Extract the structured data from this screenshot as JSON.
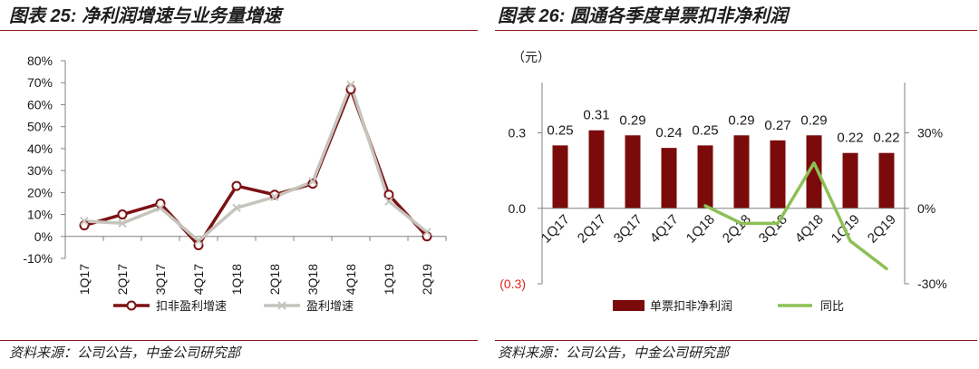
{
  "panels": {
    "left": {
      "source": "资料来源：公司公告，中金公司研究部"
    },
    "right": {
      "source": "资料来源：公司公告，中金公司研究部"
    }
  },
  "colors": {
    "rule": "#8b1a1a",
    "negative_tick": "#e02424"
  },
  "chart_data": [
    {
      "type": "line",
      "title": "图表 25: 净利润增速与业务量增速",
      "categories": [
        "1Q17",
        "2Q17",
        "3Q17",
        "4Q17",
        "1Q18",
        "2Q18",
        "3Q18",
        "4Q18",
        "1Q19",
        "2Q19"
      ],
      "ylim": [
        -10,
        80
      ],
      "yticks": [
        -10,
        0,
        10,
        20,
        30,
        40,
        50,
        60,
        70,
        80
      ],
      "ytick_labels": [
        "-10%",
        "0%",
        "10%",
        "20%",
        "30%",
        "40%",
        "50%",
        "60%",
        "70%",
        "80%"
      ],
      "grid": false,
      "legend": "bottom",
      "series": [
        {
          "name": "扣非盈利增速",
          "values": [
            5,
            10,
            15,
            -4,
            23,
            19,
            24,
            67,
            19,
            0
          ],
          "color": "#7b1113",
          "marker": "circle"
        },
        {
          "name": "盈利增速",
          "values": [
            7,
            6,
            13,
            -2,
            13,
            18,
            25,
            69,
            16,
            2
          ],
          "color": "#c6c4bd",
          "marker": "x"
        }
      ]
    },
    {
      "type": "bar",
      "title": "图表 26: 圆通各季度单票扣非净利润",
      "ylabel": "（元）",
      "categories": [
        "1Q17",
        "2Q17",
        "3Q17",
        "4Q17",
        "1Q18",
        "2Q18",
        "3Q18",
        "4Q18",
        "1Q19",
        "2Q19"
      ],
      "ylim": [
        -0.3,
        0.5
      ],
      "yticks": [
        -0.3,
        0,
        0.3
      ],
      "ytick_labels": [
        "(0.3)",
        "0.0",
        "0.3"
      ],
      "y2lim": [
        -30,
        50
      ],
      "y2ticks": [
        -30,
        0,
        30
      ],
      "y2tick_labels": [
        "-30%",
        "0%",
        "30%"
      ],
      "grid": false,
      "legend": "bottom",
      "series": [
        {
          "name": "单票扣非净利润",
          "type": "bar",
          "axis": "left",
          "values": [
            0.25,
            0.31,
            0.29,
            0.24,
            0.25,
            0.29,
            0.27,
            0.29,
            0.22,
            0.22
          ],
          "color": "#7b0b0b"
        },
        {
          "name": "同比",
          "type": "line",
          "axis": "right",
          "values": [
            null,
            null,
            null,
            null,
            1,
            -6,
            -6,
            18,
            -13,
            -24
          ],
          "color": "#8cc055"
        }
      ]
    }
  ]
}
